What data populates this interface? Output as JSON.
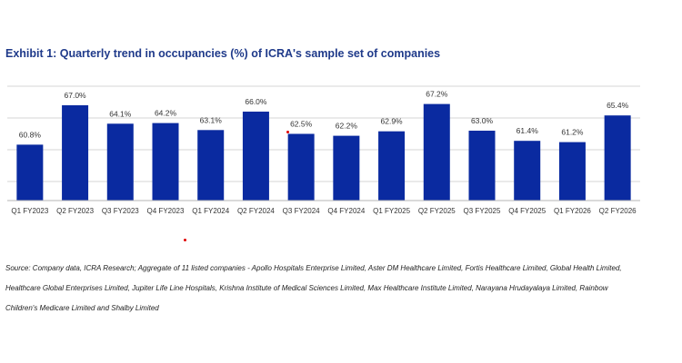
{
  "title": "Exhibit 1: Quarterly trend in occupancies (%) of ICRA's sample set of companies",
  "source_lines": [
    "Source: Company data, ICRA Research; Aggregate of 11 listed companies - Apollo Hospitals Enterprise Limited, Aster DM Healthcare Limited, Fortis Healthcare Limited, Global Health Limited,",
    "Healthcare Global Enterprises Limited, Jupiter Life Line Hospitals, Krishna Institute of Medical Sciences Limited, Max Healthcare Institute Limited, Narayana Hrudayalaya Limited, Rainbow",
    "Children's Medicare Limited and Shalby Limited"
  ],
  "chart_data": {
    "type": "bar",
    "title": "Exhibit 1: Quarterly trend in occupancies (%) of ICRA's sample set of companies",
    "xlabel": "",
    "ylabel": "",
    "ylim": [
      52,
      70
    ],
    "categories": [
      "Q1 FY2023",
      "Q2 FY2023",
      "Q3 FY2023",
      "Q4 FY2023",
      "Q1 FY2024",
      "Q2 FY2024",
      "Q3 FY2024",
      "Q4 FY2024",
      "Q1 FY2025",
      "Q2 FY2025",
      "Q3 FY2025",
      "Q4 FY2025",
      "Q1 FY2026",
      "Q2 FY2026"
    ],
    "values": [
      60.8,
      67.0,
      64.1,
      64.2,
      63.1,
      66.0,
      62.5,
      62.2,
      62.9,
      67.2,
      63.0,
      61.4,
      61.2,
      65.4
    ],
    "data_labels": [
      "60.8%",
      "67.0%",
      "64.1%",
      "64.2%",
      "63.1%",
      "66.0%",
      "62.5%",
      "62.2%",
      "62.9%",
      "67.2%",
      "63.0%",
      "61.4%",
      "61.2%",
      "65.4%"
    ],
    "grid": true,
    "legend": "none",
    "color": "#0a2aa0"
  }
}
